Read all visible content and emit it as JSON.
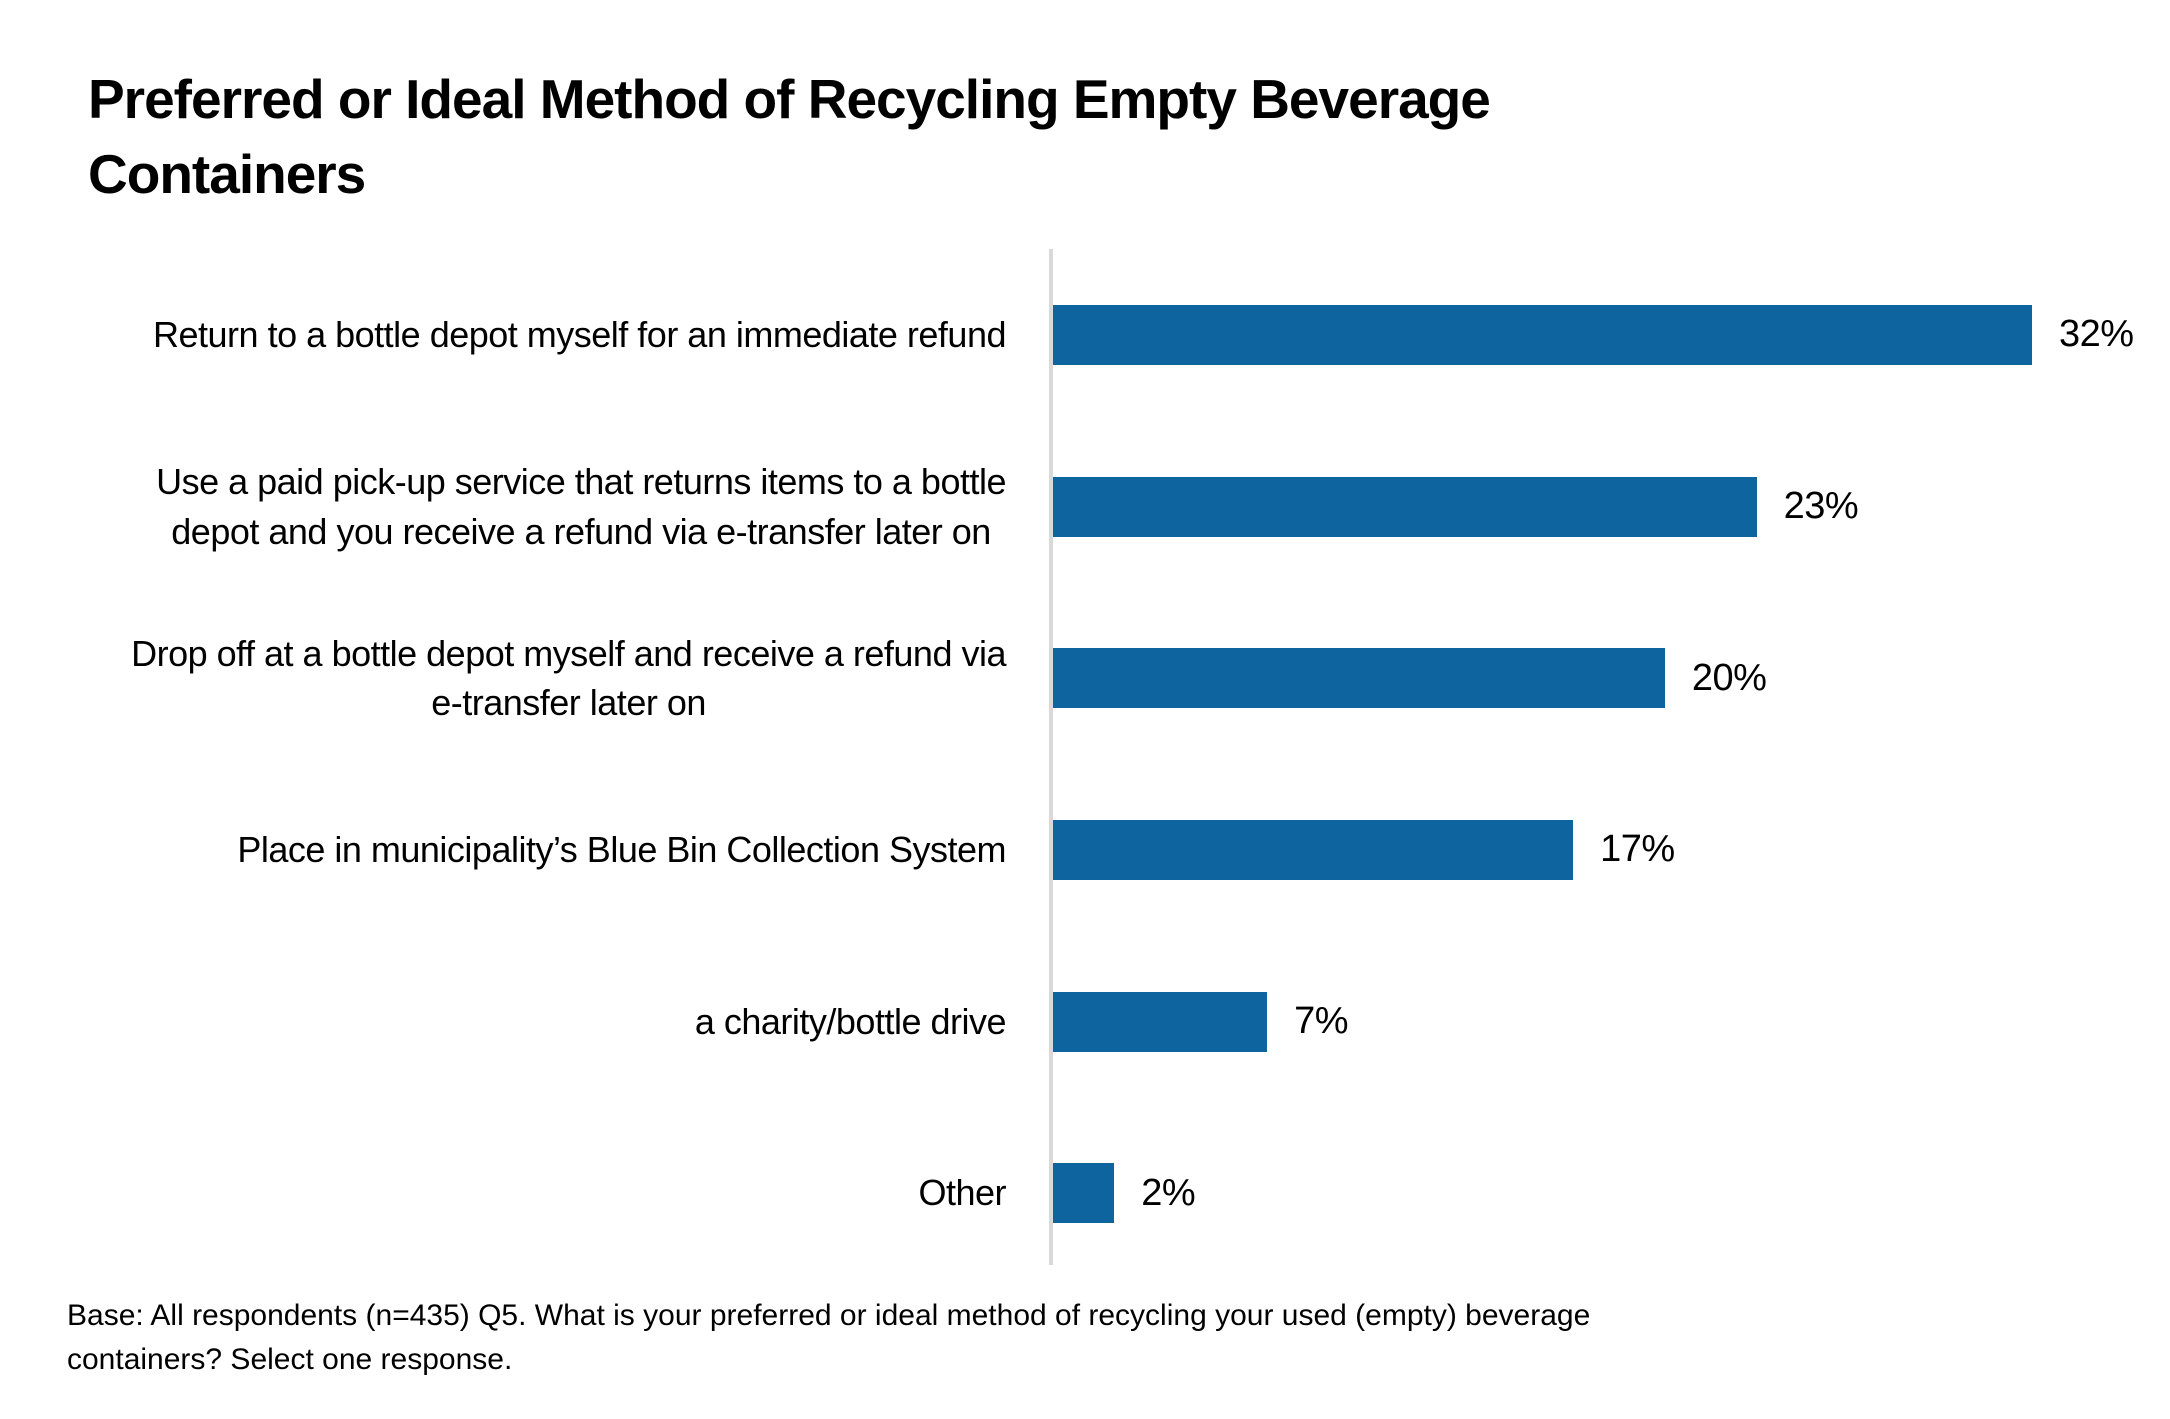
{
  "title": "Preferred or Ideal Method of Recycling Empty Beverage\nContainers",
  "footnote": "Base: All respondents (n=435) Q5. What is your preferred or ideal method of recycling your used (empty) beverage\ncontainers? Select one response.",
  "colors": {
    "bar": "#0d649e",
    "axis": "#d9d9d9",
    "text": "#000000",
    "background": "#ffffff"
  },
  "chart_data": {
    "type": "bar",
    "orientation": "horizontal",
    "title": "Preferred or Ideal Method of Recycling Empty Beverage Containers",
    "xlabel": "",
    "ylabel": "",
    "xlim": [
      0,
      35
    ],
    "grid": false,
    "legend": false,
    "categories": [
      "Return to a bottle depot myself for an immediate refund",
      "Use a paid pick-up service that returns items to a bottle\ndepot and you receive a refund via e-transfer later on",
      "Drop off at a bottle depot myself and receive a refund via\ne-transfer later on",
      "Place in municipality’s Blue Bin Collection System",
      "a charity/bottle drive",
      "Other"
    ],
    "values": [
      32,
      23,
      20,
      17,
      7,
      2
    ],
    "value_labels": [
      "32%",
      "23%",
      "20%",
      "17%",
      "7%",
      "2%"
    ],
    "base_note": "Base: All respondents (n=435) Q5. What is your preferred or ideal method of recycling your used (empty) beverage containers? Select one response."
  }
}
